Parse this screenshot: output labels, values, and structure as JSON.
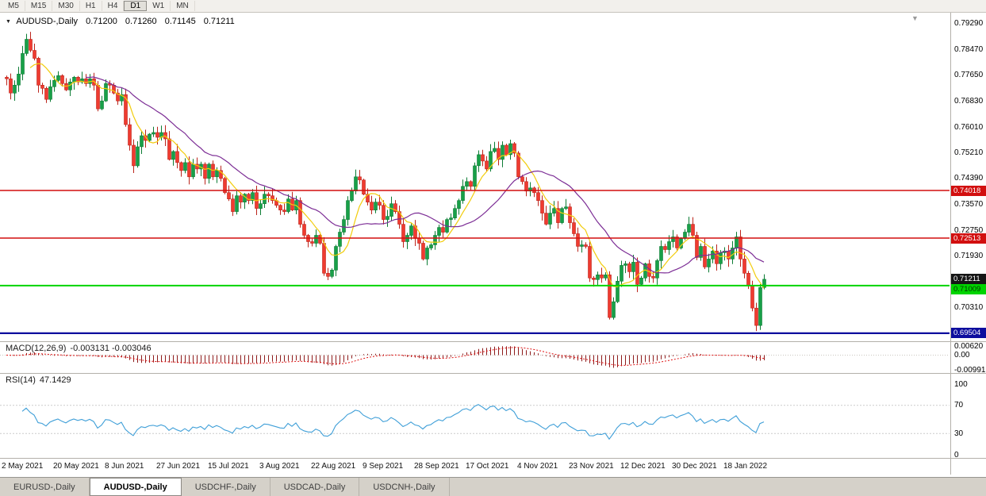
{
  "toolbar": {
    "timeframes": [
      "M5",
      "M15",
      "M30",
      "H1",
      "H4",
      "D1",
      "W1",
      "MN"
    ],
    "active": "D1"
  },
  "chart": {
    "title": {
      "symbol_period": "AUDUSD-,Daily",
      "open": "0.71200",
      "high": "0.71260",
      "low": "0.71145",
      "close": "0.71211"
    },
    "shift_marker": "▼",
    "dropdown_marker": "▼",
    "price_axis_labels": [
      "0.79290",
      "0.78470",
      "0.77650",
      "0.76830",
      "0.76010",
      "0.75210",
      "0.74390",
      "0.73570",
      "0.72750",
      "0.71930",
      "0.70310"
    ],
    "levels": [
      {
        "price": 0.74018,
        "label": "0.74018",
        "color": "#d20f0f",
        "text_color": "#ffffff",
        "line_width": 1.4
      },
      {
        "price": 0.72513,
        "label": "0.72513",
        "color": "#d20f0f",
        "text_color": "#ffffff",
        "line_width": 1.4
      },
      {
        "price": 0.71211,
        "label": "0.71211",
        "color": "#161616",
        "text_color": "#ffffff",
        "line_width": 0
      },
      {
        "price": 0.71009,
        "label": "0.71009",
        "color": "#00d400",
        "text_color": "#003800",
        "line_width": 2
      },
      {
        "price": 0.69504,
        "label": "0.69504",
        "color": "#0d0d9e",
        "text_color": "#ffffff",
        "line_width": 2.2
      }
    ],
    "date_axis_labels": [
      {
        "label": "2 May 2021",
        "bar": 0
      },
      {
        "label": "20 May 2021",
        "bar": 13
      },
      {
        "label": "8 Jun 2021",
        "bar": 26
      },
      {
        "label": "27 Jun 2021",
        "bar": 39
      },
      {
        "label": "15 Jul 2021",
        "bar": 52
      },
      {
        "label": "3 Aug 2021",
        "bar": 65
      },
      {
        "label": "22 Aug 2021",
        "bar": 78
      },
      {
        "label": "9 Sep 2021",
        "bar": 91
      },
      {
        "label": "28 Sep 2021",
        "bar": 104
      },
      {
        "label": "17 Oct 2021",
        "bar": 117
      },
      {
        "label": "4 Nov 2021",
        "bar": 130
      },
      {
        "label": "23 Nov 2021",
        "bar": 143
      },
      {
        "label": "12 Dec 2021",
        "bar": 156
      },
      {
        "label": "30 Dec 2021",
        "bar": 169
      },
      {
        "label": "18 Jan 2022",
        "bar": 182
      }
    ],
    "colors": {
      "bull": "#18a048",
      "bull_border": "#0c7c34",
      "bear": "#ef3b30",
      "bear_border": "#bc241b",
      "ma_fast": "#f2cc0c",
      "ma_slow": "#7c2d95",
      "macd_histogram": "#8e1b1b",
      "macd_signal": "#e01414",
      "rsi_line": "#3f9fd8"
    }
  },
  "macd_panel": {
    "name": "MACD(12,26,9)",
    "values": "-0.003131 -0.003046",
    "axis_labels": [
      {
        "text": "0.00620",
        "value": 0.0062
      },
      {
        "text": "0.00",
        "value": 0
      },
      {
        "text": "-0.00991",
        "value": -0.00991
      }
    ]
  },
  "rsi_panel": {
    "name": "RSI(14)",
    "value": "47.1429",
    "axis_labels": [
      {
        "text": "100",
        "value": 100
      },
      {
        "text": "70",
        "value": 70
      },
      {
        "text": "30",
        "value": 30
      },
      {
        "text": "0",
        "value": 0
      }
    ]
  },
  "tabs": [
    {
      "label": "EURUSD-,Daily",
      "active": false
    },
    {
      "label": "AUDUSD-,Daily",
      "active": true
    },
    {
      "label": "USDCHF-,Daily",
      "active": false
    },
    {
      "label": "USDCAD-,Daily",
      "active": false
    },
    {
      "label": "USDCNH-,Daily",
      "active": false
    }
  ],
  "chart_data": {
    "type": "candlestick",
    "symbol": "AUDUSD",
    "period": "Daily",
    "visible_price_range": [
      0.693,
      0.7964
    ],
    "current_bar": {
      "open": 0.712,
      "high": 0.7126,
      "low": 0.71145,
      "close": 0.71211
    },
    "first_open": 0.776,
    "closes": [
      0.7755,
      0.771,
      0.7735,
      0.777,
      0.7835,
      0.788,
      0.7845,
      0.782,
      0.7735,
      0.7725,
      0.769,
      0.773,
      0.775,
      0.7765,
      0.774,
      0.772,
      0.7745,
      0.776,
      0.7745,
      0.7755,
      0.774,
      0.7755,
      0.7735,
      0.766,
      0.7685,
      0.774,
      0.7735,
      0.771,
      0.7685,
      0.7705,
      0.761,
      0.7545,
      0.748,
      0.754,
      0.7575,
      0.756,
      0.758,
      0.7585,
      0.757,
      0.7585,
      0.7565,
      0.75,
      0.7525,
      0.749,
      0.7465,
      0.749,
      0.7445,
      0.7485,
      0.747,
      0.7485,
      0.744,
      0.7485,
      0.7445,
      0.7465,
      0.744,
      0.7395,
      0.7375,
      0.7335,
      0.7385,
      0.7365,
      0.739,
      0.737,
      0.7395,
      0.7345,
      0.736,
      0.739,
      0.7385,
      0.737,
      0.7355,
      0.734,
      0.7335,
      0.7375,
      0.734,
      0.737,
      0.7295,
      0.726,
      0.724,
      0.7235,
      0.726,
      0.7235,
      0.714,
      0.713,
      0.715,
      0.7225,
      0.727,
      0.731,
      0.737,
      0.74,
      0.7445,
      0.7435,
      0.739,
      0.7365,
      0.734,
      0.7365,
      0.7355,
      0.731,
      0.732,
      0.736,
      0.7335,
      0.7295,
      0.724,
      0.726,
      0.729,
      0.725,
      0.7235,
      0.7185,
      0.722,
      0.723,
      0.726,
      0.7285,
      0.727,
      0.731,
      0.7315,
      0.7345,
      0.737,
      0.7415,
      0.743,
      0.7415,
      0.748,
      0.7515,
      0.7495,
      0.747,
      0.7525,
      0.7535,
      0.75,
      0.7545,
      0.7515,
      0.755,
      0.752,
      0.7445,
      0.743,
      0.74,
      0.741,
      0.7395,
      0.737,
      0.733,
      0.7295,
      0.733,
      0.7345,
      0.73,
      0.7345,
      0.735,
      0.73,
      0.7265,
      0.7225,
      0.723,
      0.7225,
      0.7125,
      0.712,
      0.7135,
      0.7125,
      0.7135,
      0.7,
      0.705,
      0.7115,
      0.7165,
      0.717,
      0.7145,
      0.7175,
      0.7105,
      0.7125,
      0.717,
      0.713,
      0.7125,
      0.718,
      0.7225,
      0.7215,
      0.724,
      0.7255,
      0.722,
      0.725,
      0.727,
      0.7295,
      0.726,
      0.719,
      0.7225,
      0.716,
      0.7185,
      0.721,
      0.717,
      0.7205,
      0.721,
      0.7185,
      0.722,
      0.7255,
      0.7185,
      0.714,
      0.71,
      0.703,
      0.6975,
      0.7095,
      0.7121
    ]
  }
}
